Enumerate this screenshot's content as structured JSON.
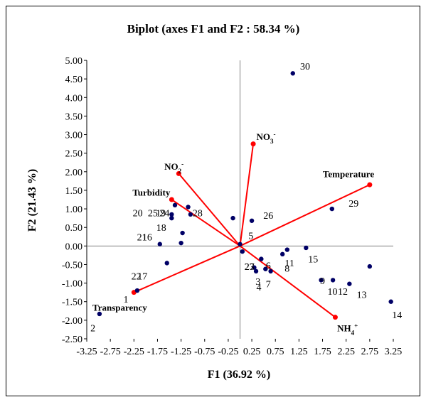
{
  "chart_data": {
    "type": "scatter",
    "title": "Biplot (axes F1 and F2 : 58.34 %)",
    "xlabel": "F1 (36.92 %)",
    "ylabel": "F2 (21.43 %)",
    "xlim": [
      -3.25,
      3.25
    ],
    "ylim": [
      -2.5,
      5.0
    ],
    "x_ticks": [
      "-3.25",
      "-2.75",
      "-2.25",
      "-1.75",
      "-1.25",
      "-0.75",
      "-0.25",
      "0.25",
      "0.75",
      "1.25",
      "1.75",
      "2.25",
      "2.75",
      "3.25"
    ],
    "y_ticks": [
      "5.00",
      "4.50",
      "4.00",
      "3.50",
      "3.00",
      "2.50",
      "2.00",
      "1.50",
      "1.00",
      "0.50",
      "0.00",
      "-0.50",
      "-1.00",
      "-1.50",
      "-2.00",
      "-2.50"
    ],
    "grid": false,
    "colors": {
      "observations": "#000066",
      "variables": "#ff0000",
      "axes": "#808080"
    },
    "observations": [
      {
        "label": "1",
        "x": -2.18,
        "y": -1.2
      },
      {
        "label": "2",
        "x": -2.98,
        "y": -1.83
      },
      {
        "label": "3",
        "x": 0.54,
        "y": -0.62
      },
      {
        "label": "4",
        "x": 0.34,
        "y": -0.68
      },
      {
        "label": "5",
        "x": 0.0,
        "y": 0.05
      },
      {
        "label": "6",
        "x": 0.45,
        "y": -0.35
      },
      {
        "label": "7",
        "x": 0.65,
        "y": -0.68
      },
      {
        "label": "8",
        "x": 0.9,
        "y": -0.22
      },
      {
        "label": "9",
        "x": 1.72,
        "y": -0.92
      },
      {
        "label": "10",
        "x": 1.97,
        "y": -0.92
      },
      {
        "label": "11",
        "x": 1.0,
        "y": -0.1
      },
      {
        "label": "12",
        "x": 2.32,
        "y": -1.02
      },
      {
        "label": "13",
        "x": 2.75,
        "y": -0.55
      },
      {
        "label": "14",
        "x": 3.2,
        "y": -1.5
      },
      {
        "label": "15",
        "x": 1.4,
        "y": -0.05
      },
      {
        "label": "16",
        "x": -1.22,
        "y": 0.35
      },
      {
        "label": "17",
        "x": -1.55,
        "y": -0.46
      },
      {
        "label": "18",
        "x": -1.45,
        "y": 0.85
      },
      {
        "label": "19",
        "x": -1.38,
        "y": 1.1
      },
      {
        "label": "20",
        "x": -1.7,
        "y": 0.05
      },
      {
        "label": "21",
        "x": -1.45,
        "y": 0.75
      },
      {
        "label": "22",
        "x": -0.15,
        "y": 0.75
      },
      {
        "label": "23",
        "x": 0.05,
        "y": -0.15
      },
      {
        "label": "24",
        "x": -1.25,
        "y": 0.08
      },
      {
        "label": "25",
        "x": -1.1,
        "y": 1.05
      },
      {
        "label": "26",
        "x": 0.25,
        "y": 0.68
      },
      {
        "label": "27",
        "x": 0.3,
        "y": -0.58
      },
      {
        "label": "28",
        "x": -1.05,
        "y": 0.85
      },
      {
        "label": "29",
        "x": 1.95,
        "y": 1.0
      },
      {
        "label": "30",
        "x": 1.12,
        "y": 4.65
      }
    ],
    "variables": [
      {
        "label": "Temperature",
        "x": 2.75,
        "y": 1.65
      },
      {
        "label": "NO3-",
        "x": 0.28,
        "y": 2.75
      },
      {
        "label": "NO2-",
        "x": -1.3,
        "y": 1.95
      },
      {
        "label": "Turbidity",
        "x": -1.45,
        "y": 1.25
      },
      {
        "label": "Transparency",
        "x": -2.25,
        "y": -1.25
      },
      {
        "label": "NH4+",
        "x": 2.02,
        "y": -1.92
      }
    ],
    "obs_labels_display": [
      {
        "text": "1",
        "x": -2.42,
        "y": -1.43
      },
      {
        "text": "2",
        "x": -3.12,
        "y": -2.2
      },
      {
        "text": "3",
        "x": 0.38,
        "y": -0.95
      },
      {
        "text": "4",
        "x": 0.4,
        "y": -1.1
      },
      {
        "text": "5",
        "x": 0.23,
        "y": 0.28
      },
      {
        "text": "6",
        "x": 0.6,
        "y": -0.52
      },
      {
        "text": "7",
        "x": 0.6,
        "y": -1.02
      },
      {
        "text": "8",
        "x": 1.0,
        "y": -0.6
      },
      {
        "text": "9",
        "x": 1.75,
        "y": -0.93
      },
      {
        "text": "10",
        "x": 1.96,
        "y": -1.22
      },
      {
        "text": "11",
        "x": 1.05,
        "y": -0.45
      },
      {
        "text": "12",
        "x": 2.18,
        "y": -1.22
      },
      {
        "text": "13",
        "x": 2.58,
        "y": -1.3
      },
      {
        "text": "14",
        "x": 3.33,
        "y": -1.85
      },
      {
        "text": "15",
        "x": 1.55,
        "y": -0.35
      },
      {
        "text": "16",
        "x": -1.97,
        "y": 0.25
      },
      {
        "text": "17",
        "x": -2.07,
        "y": -0.81
      },
      {
        "text": "18",
        "x": -1.67,
        "y": 0.5
      },
      {
        "text": "19",
        "x": -1.68,
        "y": 0.9
      },
      {
        "text": "20",
        "x": -2.17,
        "y": 0.9
      },
      {
        "text": "21",
        "x": -2.08,
        "y": 0.25
      },
      {
        "text": "22",
        "x": -2.2,
        "y": -0.81
      },
      {
        "text": "23",
        "x": 0.2,
        "y": -0.55
      },
      {
        "text": "24",
        "x": -1.6,
        "y": 0.9
      },
      {
        "text": "25",
        "x": -1.85,
        "y": 0.9
      },
      {
        "text": "26",
        "x": 0.6,
        "y": 0.83
      },
      {
        "text": "27",
        "x": 0.2,
        "y": -0.55
      },
      {
        "text": "28",
        "x": -0.9,
        "y": 0.9
      },
      {
        "text": "29",
        "x": 2.41,
        "y": 1.15
      },
      {
        "text": "30",
        "x": 1.38,
        "y": 4.85
      }
    ]
  }
}
